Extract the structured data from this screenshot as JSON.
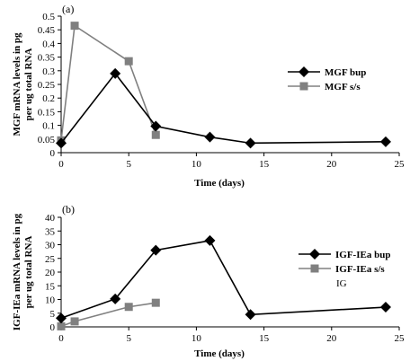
{
  "chart_data": [
    {
      "type": "line",
      "panel_label": "(a)",
      "xlabel": "Time (days)",
      "ylabel": [
        "MGF mRNA levels in pg",
        "per ug total RNA"
      ],
      "xlim": [
        0,
        25
      ],
      "ylim": [
        0,
        0.5
      ],
      "x_ticks": [
        0,
        5,
        10,
        15,
        20,
        25
      ],
      "y_ticks": [
        0,
        0.05,
        0.1,
        0.15,
        0.2,
        0.25,
        0.3,
        0.35,
        0.4,
        0.45,
        0.5
      ],
      "grid": false,
      "legend_position": "right",
      "series": [
        {
          "name": "MGF bup",
          "color": "#000000",
          "marker": "diamond",
          "x": [
            0,
            4,
            7,
            11,
            14,
            24
          ],
          "y": [
            0.035,
            0.29,
            0.097,
            0.057,
            0.035,
            0.04
          ]
        },
        {
          "name": "MGF s/s",
          "color": "#808080",
          "marker": "square",
          "x": [
            0,
            1,
            5,
            7
          ],
          "y": [
            0.045,
            0.465,
            0.335,
            0.065
          ]
        }
      ]
    },
    {
      "type": "line",
      "panel_label": "(b)",
      "xlabel": "Time (days)",
      "ylabel": [
        "IGF-IEa mRNA levels in pg",
        "per ug total RNA"
      ],
      "xlim": [
        0,
        25
      ],
      "ylim": [
        0,
        40
      ],
      "x_ticks": [
        0,
        5,
        10,
        15,
        20,
        25
      ],
      "y_ticks": [
        0,
        5,
        10,
        15,
        20,
        25,
        30,
        35,
        40
      ],
      "grid": false,
      "legend_position": "right",
      "annotation": "IG",
      "series": [
        {
          "name": "IGF-IEa bup",
          "color": "#000000",
          "marker": "diamond",
          "x": [
            0,
            4,
            7,
            11,
            14,
            24
          ],
          "y": [
            3.2,
            10.2,
            28,
            31.5,
            4.5,
            7.2
          ]
        },
        {
          "name": "IGF-IEa s/s",
          "color": "#808080",
          "marker": "square",
          "x": [
            0,
            1,
            5,
            7
          ],
          "y": [
            0.2,
            2,
            7.3,
            8.8
          ]
        }
      ]
    }
  ]
}
